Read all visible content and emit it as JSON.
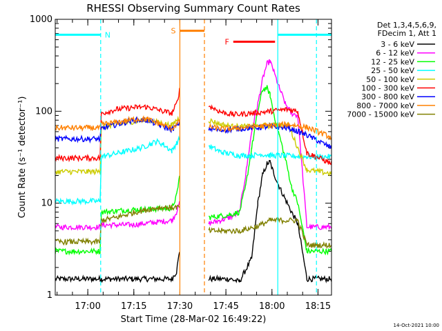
{
  "chart_data": {
    "type": "line",
    "title": "RHESSI Observing Summary Count Rates",
    "xlabel": "Start Time (28-Mar-02 16:49:22)",
    "ylabel": "Count Rate (s⁻¹ detector⁻¹)",
    "yscale": "log",
    "ylim": [
      1,
      1000
    ],
    "xlim_minutes_after_start": [
      0,
      90
    ],
    "x_ticks": [
      "17:00",
      "17:15",
      "17:30",
      "17:45",
      "18:00",
      "18:15"
    ],
    "x_tick_minutes": [
      10.6,
      25.6,
      40.6,
      55.6,
      70.6,
      85.6
    ],
    "y_ticks": [
      "1",
      "10",
      "100",
      "1000"
    ],
    "y_tick_values": [
      1,
      10,
      100,
      1000
    ],
    "legend_placement": "outside-right",
    "legend_header": [
      "Det 1,3,4,5,6,9,",
      "FDecim 1, Att 1"
    ],
    "footer_date": "14-Oct-2021 10:00",
    "series": [
      {
        "name": "3 - 6 keV",
        "color": "#000000",
        "x": [
          0,
          14.6,
          15,
          25,
          38,
          39.5,
          40.5,
          48.5,
          50,
          57,
          60,
          64,
          66,
          67.5,
          69,
          70,
          71,
          73,
          75,
          77,
          79,
          82,
          90
        ],
        "y": [
          1.5,
          1.5,
          1.5,
          1.5,
          1.5,
          1.8,
          3,
          null,
          1.5,
          1.5,
          1.4,
          2.5,
          10,
          20,
          27,
          28,
          22,
          15,
          11,
          8,
          6,
          1.5,
          1.5
        ]
      },
      {
        "name": "6 - 12 keV",
        "color": "#ff00ff",
        "x": [
          0,
          14.6,
          15,
          25,
          38,
          39.5,
          40.5,
          48.5,
          50,
          57,
          60,
          62,
          64,
          66,
          67.5,
          69,
          70,
          71,
          73,
          75,
          77,
          79,
          82,
          90
        ],
        "y": [
          5.5,
          5.5,
          5.8,
          5.8,
          6.5,
          8,
          10,
          null,
          6,
          7,
          8,
          20,
          60,
          120,
          220,
          330,
          350,
          280,
          180,
          120,
          95,
          90,
          5.5,
          5.5
        ]
      },
      {
        "name": "12 - 25 keV",
        "color": "#00ff00",
        "x": [
          0,
          14.6,
          15,
          25,
          38,
          39.5,
          40.5,
          48.5,
          50,
          57,
          60,
          62,
          64,
          66,
          67.5,
          69,
          70,
          71,
          73,
          75,
          77,
          79,
          82,
          90
        ],
        "y": [
          3,
          3,
          8,
          8.5,
          8.8,
          12,
          20,
          null,
          7,
          7.5,
          8,
          15,
          40,
          100,
          170,
          180,
          150,
          100,
          55,
          30,
          15,
          10,
          3,
          3
        ]
      },
      {
        "name": "25 - 50 keV",
        "color": "#00ffff",
        "x": [
          0,
          14.6,
          15,
          22,
          28,
          33,
          35,
          38,
          39.5,
          40.5,
          48.5,
          50,
          54,
          60,
          64,
          67,
          70,
          73,
          82,
          90
        ],
        "y": [
          10.5,
          10.5,
          32,
          36,
          40,
          47,
          44,
          37,
          45,
          50,
          null,
          42,
          36,
          33,
          33,
          34,
          33,
          33,
          32,
          32
        ]
      },
      {
        "name": "50 - 100 keV",
        "color": "#cccc00",
        "x": [
          0,
          14.6,
          15,
          20,
          26,
          30,
          34,
          38,
          39.5,
          40.5,
          48.5,
          50,
          54,
          58,
          64,
          70,
          76,
          82,
          90
        ],
        "y": [
          22,
          22,
          68,
          72,
          78,
          80,
          75,
          70,
          80,
          85,
          null,
          80,
          72,
          68,
          68,
          70,
          70,
          23,
          21
        ]
      },
      {
        "name": "100 - 300 keV",
        "color": "#ff0000",
        "x": [
          0,
          14.6,
          15,
          20,
          26,
          30,
          34,
          38,
          39.5,
          40.5,
          48.5,
          50,
          54,
          58,
          64,
          70,
          76,
          79,
          82,
          84,
          90
        ],
        "y": [
          31,
          31,
          95,
          105,
          110,
          112,
          102,
          95,
          120,
          170,
          null,
          115,
          98,
          92,
          95,
          100,
          105,
          100,
          35,
          33,
          27
        ]
      },
      {
        "name": "300 - 800 keV",
        "color": "#0000ff",
        "x": [
          0,
          14.6,
          15,
          20,
          26,
          30,
          34,
          38,
          39.5,
          40.5,
          48.5,
          50,
          54,
          58,
          64,
          70,
          76,
          82,
          90
        ],
        "y": [
          50,
          50,
          65,
          72,
          80,
          80,
          70,
          63,
          70,
          75,
          null,
          65,
          62,
          64,
          66,
          68,
          66,
          55,
          40
        ]
      },
      {
        "name": "800 - 7000 keV",
        "color": "#ff8000",
        "x": [
          0,
          14.6,
          15,
          20,
          26,
          30,
          34,
          38,
          39.5,
          40.5,
          48.5,
          50,
          54,
          58,
          64,
          70,
          76,
          82,
          90
        ],
        "y": [
          66,
          66,
          72,
          76,
          82,
          82,
          73,
          65,
          72,
          78,
          null,
          68,
          64,
          65,
          68,
          70,
          72,
          67,
          52
        ]
      },
      {
        "name": "7000 - 15000 keV",
        "color": "#808000",
        "x": [
          0,
          14.6,
          15,
          20,
          26,
          30,
          34,
          38,
          39.5,
          40.5,
          48.5,
          50,
          55,
          60,
          65,
          68,
          70,
          75,
          79,
          82,
          90
        ],
        "y": [
          3.8,
          3.8,
          6.5,
          7,
          8,
          8.5,
          9,
          9,
          9,
          9,
          null,
          5,
          5,
          5,
          5.5,
          6,
          6.5,
          6.5,
          6.5,
          3.5,
          3.5
        ]
      }
    ],
    "annotations": [
      {
        "label": "N",
        "color": "#00ffff",
        "x_start": 0,
        "x_end": 14.8,
        "y": 680,
        "kind": "night"
      },
      {
        "label": "N",
        "color": "#00ffff",
        "x_start": 72.5,
        "x_end": 90,
        "y": 680,
        "kind": "night"
      },
      {
        "label": "S",
        "color": "#ff8000",
        "x_start": 40.6,
        "x_end": 48.6,
        "y": 750,
        "kind": "saa"
      },
      {
        "label": "F",
        "color": "#ff0000",
        "x_start": 58,
        "x_end": 71.6,
        "y": 570,
        "kind": "flare"
      }
    ],
    "vlines": [
      {
        "x": 14.8,
        "color": "#00ffff",
        "style": "dashed"
      },
      {
        "x": 40.6,
        "color": "#ff8000",
        "style": "solid"
      },
      {
        "x": 48.6,
        "color": "#ff8000",
        "style": "dashed"
      },
      {
        "x": 72.5,
        "color": "#00ffff",
        "style": "solid"
      },
      {
        "x": 85.1,
        "color": "#00ffff",
        "style": "dashed"
      }
    ]
  }
}
